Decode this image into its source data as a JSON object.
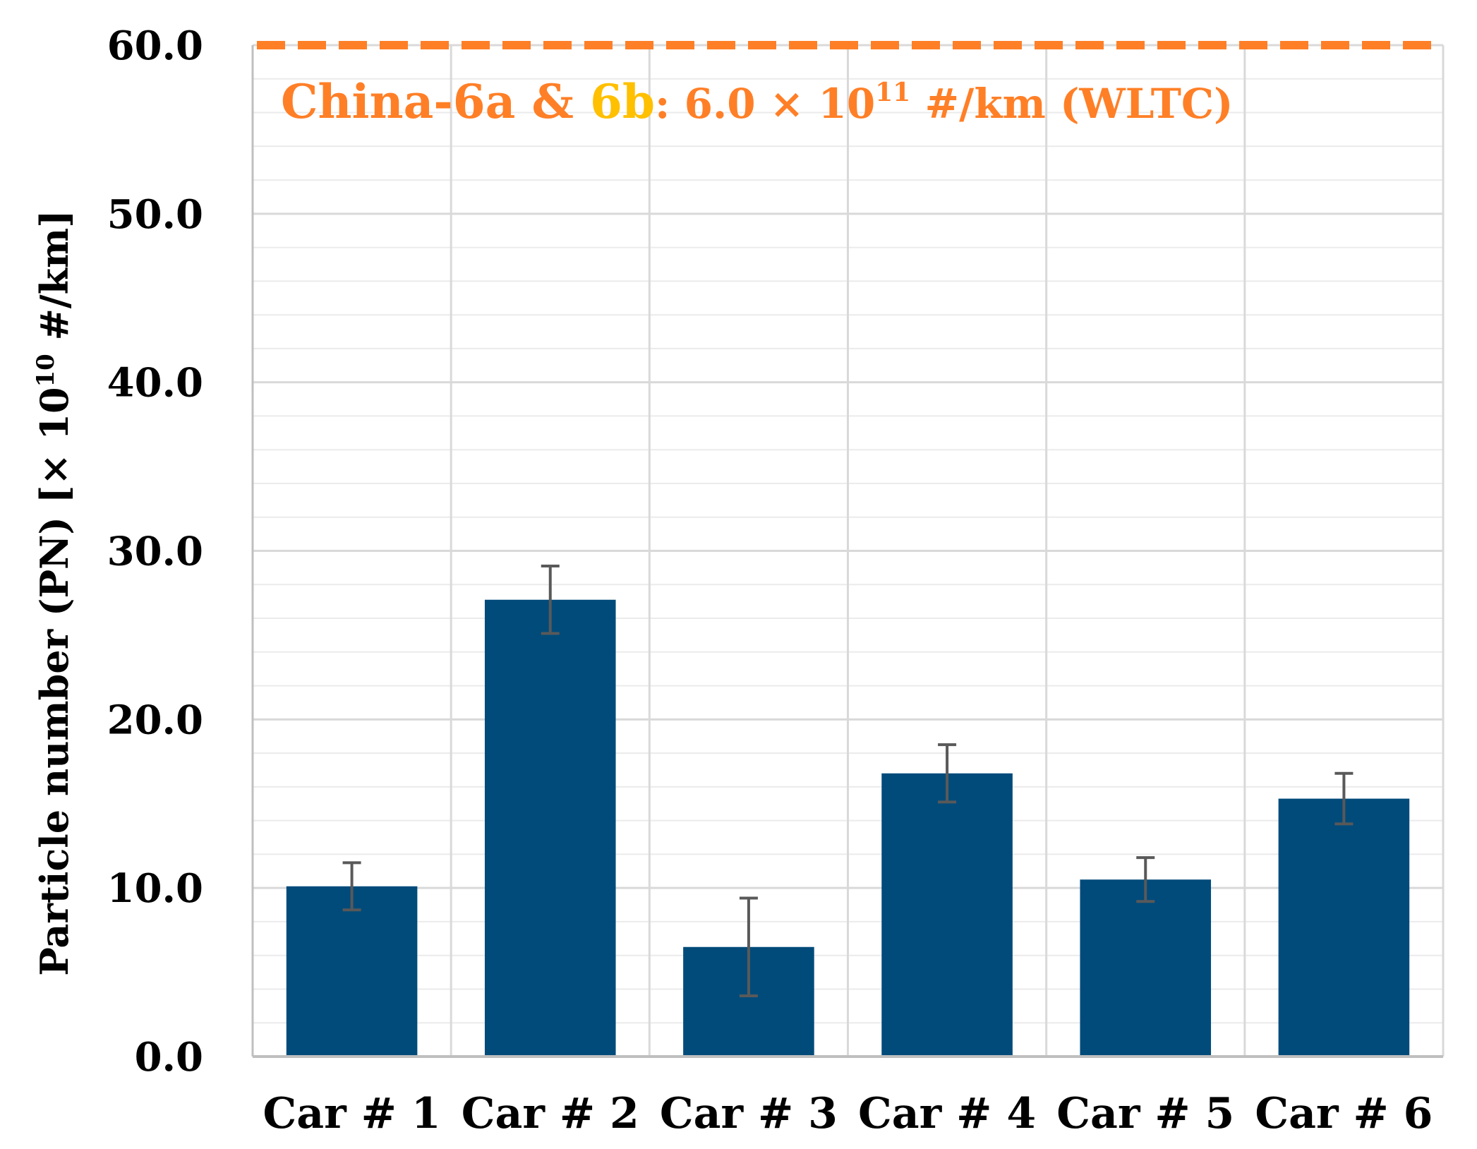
{
  "chart_data": {
    "type": "bar",
    "title": "",
    "xlabel": "",
    "ylabel": "Particle number (PN) [× 10",
    "ylabel_exp": "10",
    "ylabel_tail": " #/km]",
    "categories": [
      "Car # 1",
      "Car # 2",
      "Car # 3",
      "Car # 4",
      "Car # 5",
      "Car # 6"
    ],
    "values": [
      10.1,
      27.1,
      6.5,
      16.8,
      10.5,
      15.3
    ],
    "errors": [
      1.4,
      2.0,
      2.9,
      1.7,
      1.3,
      1.5
    ],
    "ylim": [
      0,
      60
    ],
    "major_ticks": [
      0,
      10,
      20,
      30,
      40,
      50,
      60
    ],
    "tick_labels": [
      "0.0",
      "10.0",
      "20.0",
      "30.0",
      "40.0",
      "50.0",
      "60.0"
    ],
    "minor_step": 2,
    "grid": true,
    "limit_line": {
      "value": 60.0,
      "label_part1": "China-6a & ",
      "label_part2": "6b",
      "label_part3": ": 6.0 × 10",
      "label_exp": "11",
      "label_part4": " #/km (WLTC)"
    },
    "colors": {
      "bar": "#004b7a",
      "error_bar": "#595959",
      "limit": "#ff7f27",
      "limit_highlight": "#ffc000",
      "grid_major": "#d9d9d9",
      "grid_minor": "#ebebeb",
      "axis": "#bfbfbf",
      "text": "#000000"
    }
  }
}
